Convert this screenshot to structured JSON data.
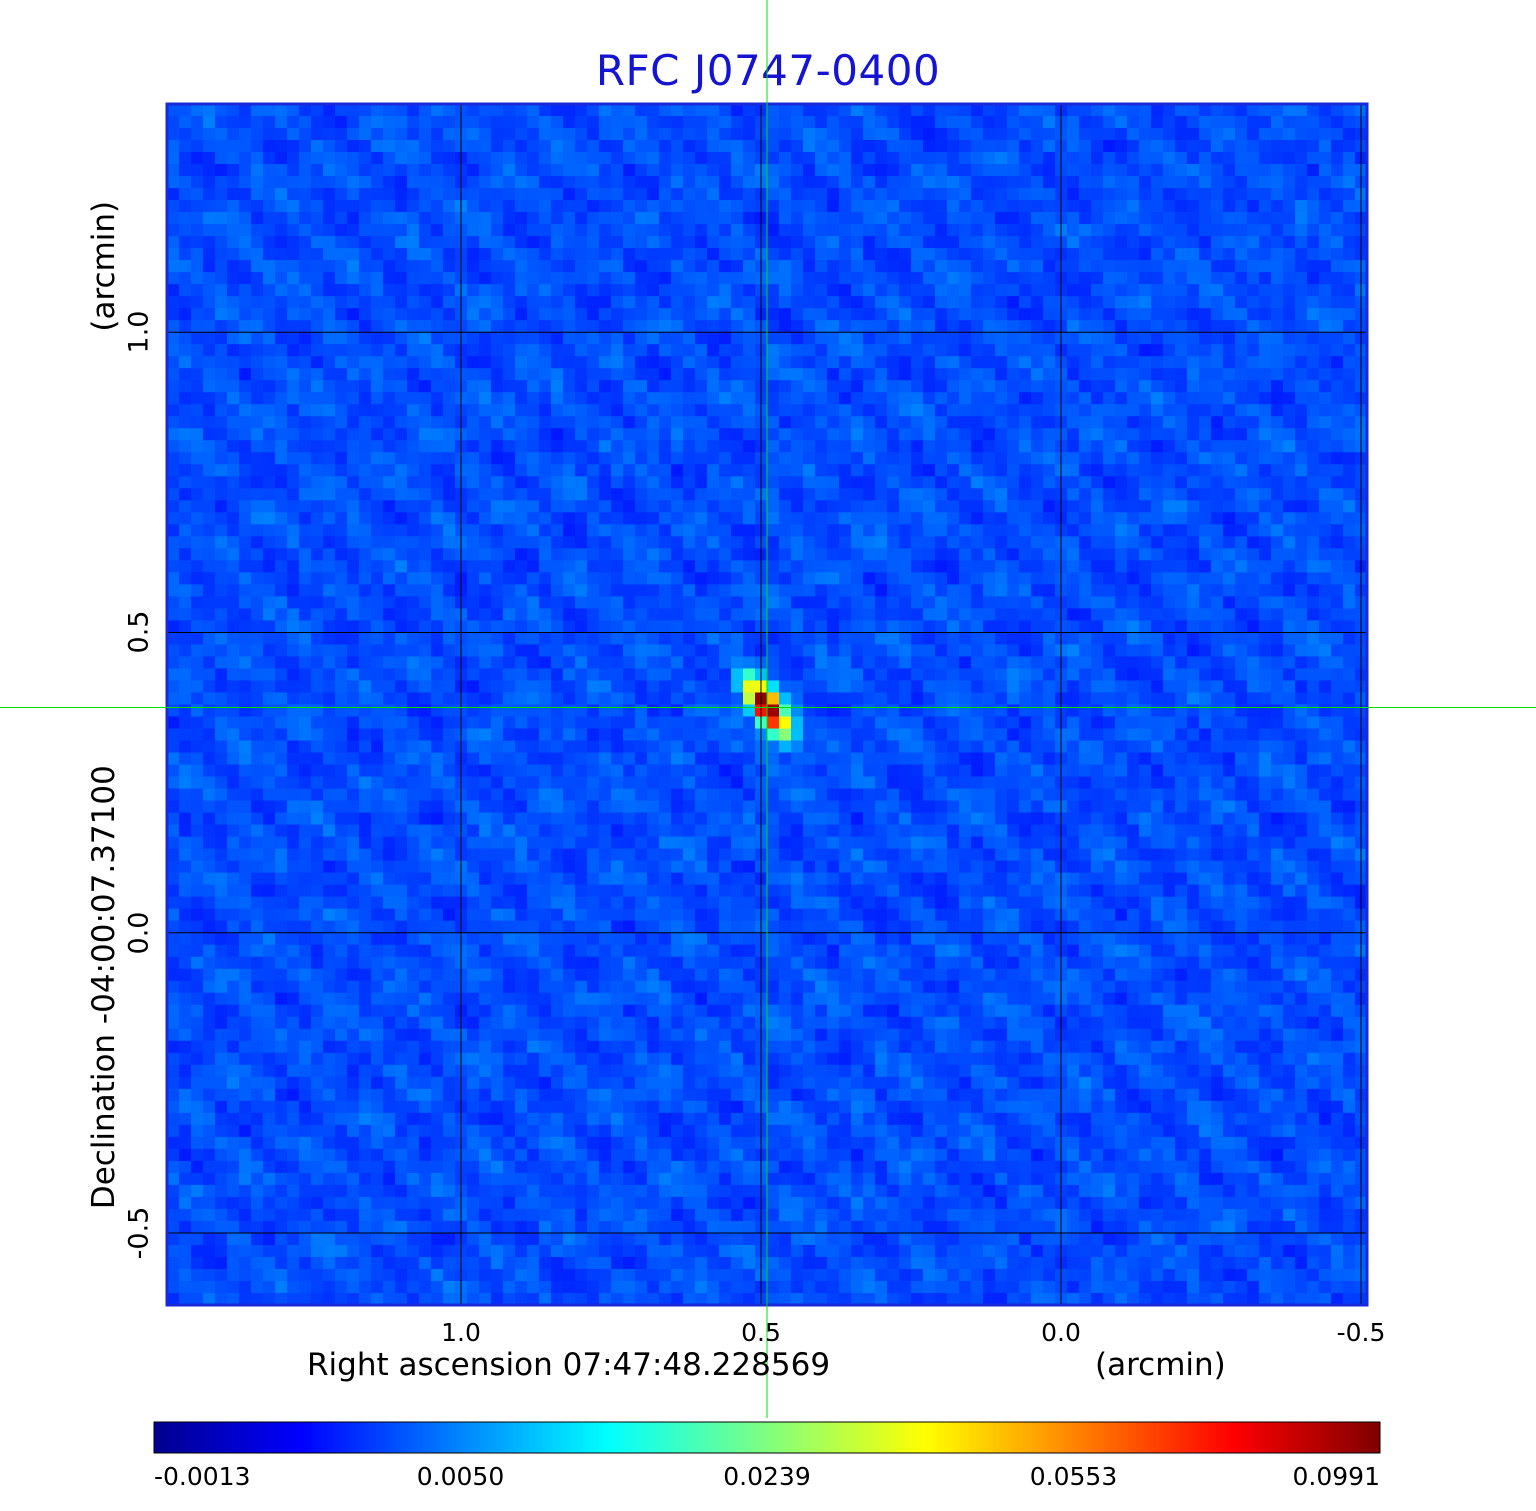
{
  "chart_data": {
    "type": "heatmap",
    "title": "RFC J0747-0400",
    "xlabel": "Right ascension  07:47:48.228569",
    "xunit": "(arcmin)",
    "ylabel": "Declination  -04:00:07.37100",
    "yunit": "(arcmin)",
    "x_ticks": [
      {
        "value": 1.0,
        "label": "1.0"
      },
      {
        "value": 0.5,
        "label": "0.5"
      },
      {
        "value": 0.0,
        "label": "0.0"
      },
      {
        "value": -0.5,
        "label": "-0.5"
      }
    ],
    "y_ticks": [
      {
        "value": 1.0,
        "label": "1.0"
      },
      {
        "value": 0.5,
        "label": "0.5"
      },
      {
        "value": 0.0,
        "label": "0.0"
      },
      {
        "value": -0.5,
        "label": "-0.5"
      }
    ],
    "xlim": [
      1.49,
      -0.51
    ],
    "ylim": [
      -0.62,
      1.38
    ],
    "grid": true,
    "colormap": "jet",
    "crosshair": {
      "x": 0.49,
      "y": 0.375,
      "color": "#00e000"
    },
    "peak": {
      "x": 0.49,
      "y": 0.375,
      "value": 0.0991
    },
    "colorbar_ticks": [
      "-0.0013",
      "0.0050",
      "0.0239",
      "0.0553",
      "0.0991"
    ],
    "value_range": [
      -0.0013,
      0.0991
    ]
  }
}
